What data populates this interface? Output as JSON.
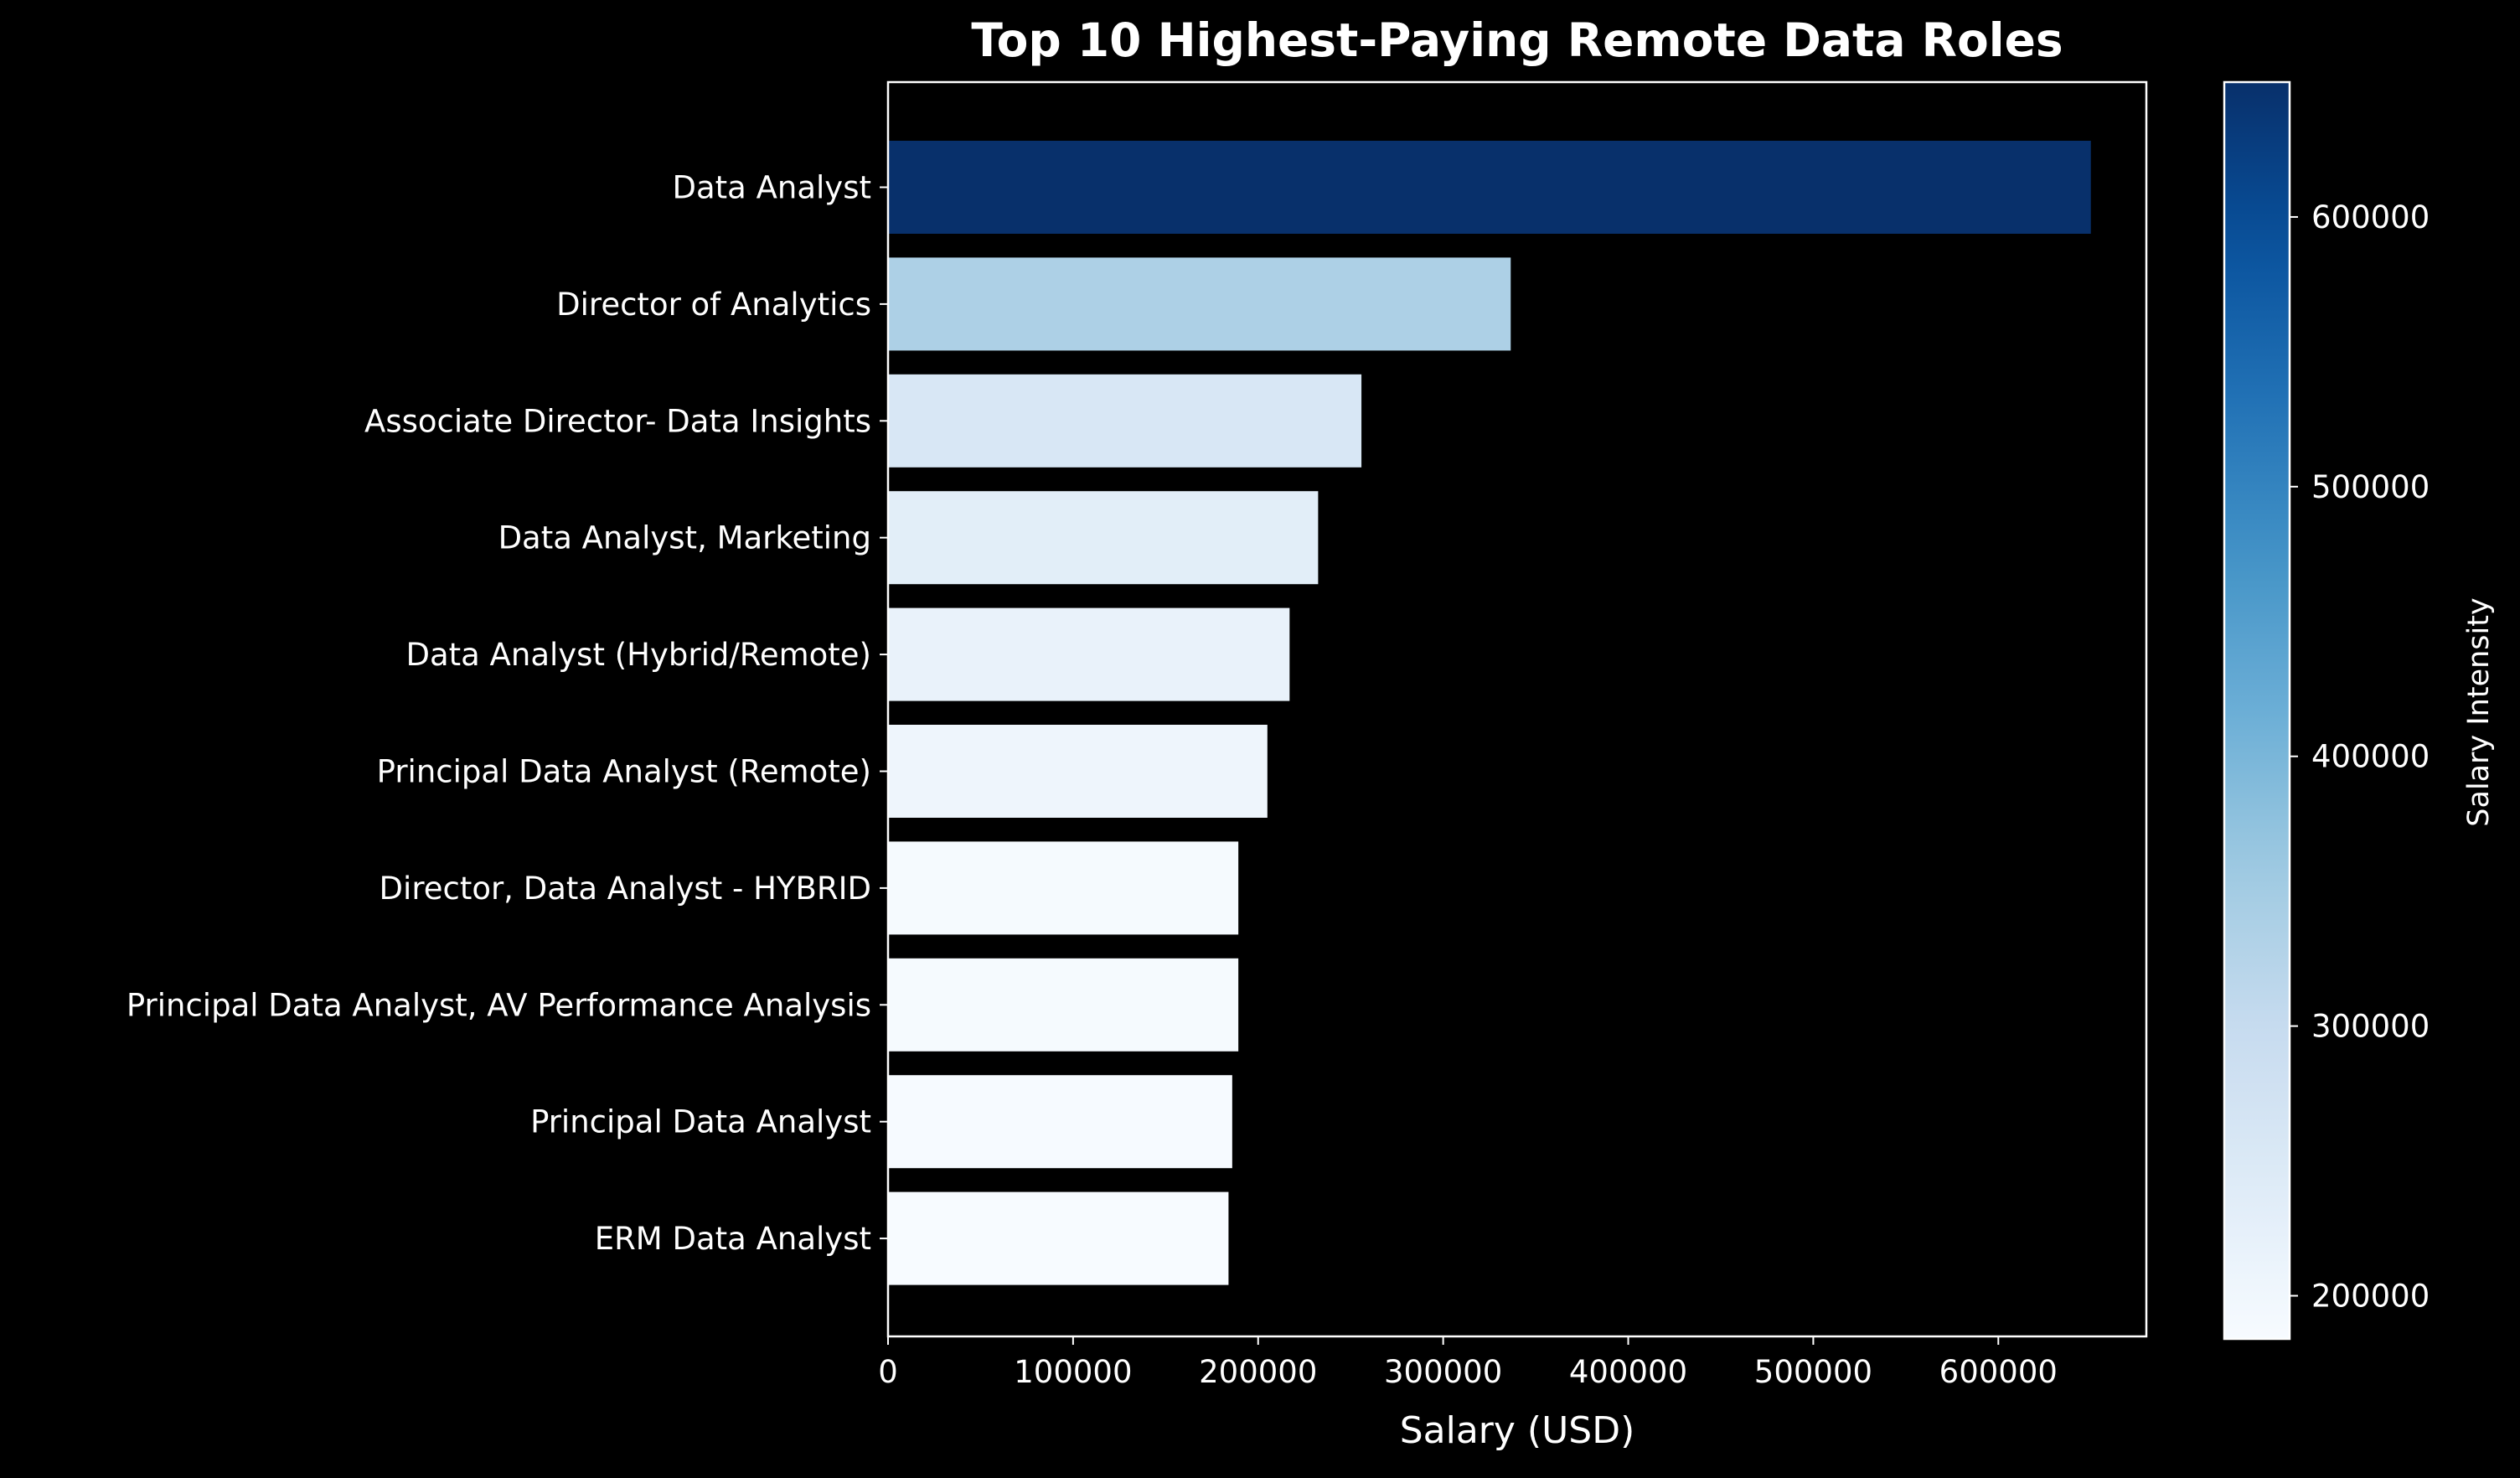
{
  "chart_data": {
    "type": "bar",
    "orientation": "horizontal",
    "title": "Top 10 Highest-Paying Remote Data Roles",
    "xlabel": "Salary (USD)",
    "ylabel": "",
    "xlim": [
      0,
      680000
    ],
    "x_ticks": [
      0,
      100000,
      200000,
      300000,
      400000,
      500000,
      600000
    ],
    "grid": false,
    "legend": "none",
    "background": "#000000",
    "text_color": "#ffffff",
    "colormap": "Blues",
    "categories": [
      "Data Analyst",
      "Director of Analytics",
      "Associate Director- Data Insights",
      "Data Analyst, Marketing",
      "Data Analyst (Hybrid/Remote)",
      "Principal Data Analyst (Remote)",
      "Director, Data Analyst - HYBRID",
      "Principal Data Analyst, AV Performance Analysis",
      "Principal Data Analyst",
      "ERM Data Analyst"
    ],
    "values": [
      650000,
      336500,
      255830,
      232423,
      217000,
      205000,
      189309,
      189309,
      186000,
      184000
    ],
    "colorbar": {
      "label": "Salary Intensity",
      "range": [
        184000,
        650000
      ],
      "ticks": [
        200000,
        300000,
        400000,
        500000,
        600000
      ]
    }
  }
}
